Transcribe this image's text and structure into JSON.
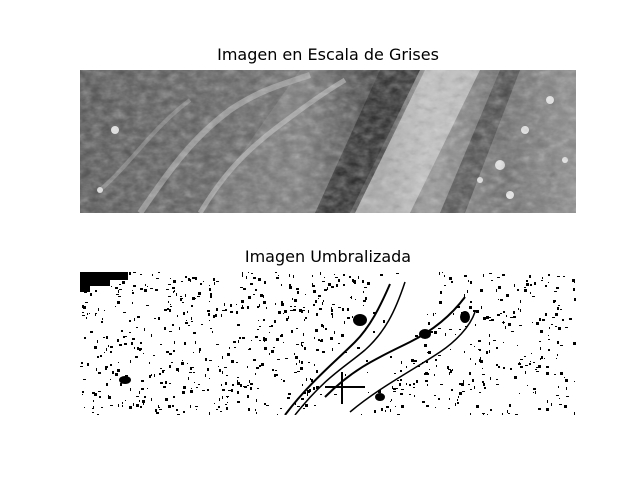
{
  "figure": {
    "panels": [
      {
        "id": "grayscale",
        "title": "Imagen en Escala de Grises"
      },
      {
        "id": "thresholded",
        "title": "Imagen Umbralizada"
      }
    ]
  },
  "colors": {
    "background": "#ffffff",
    "text": "#000000",
    "binary_black": "#000000",
    "binary_white": "#ffffff"
  }
}
